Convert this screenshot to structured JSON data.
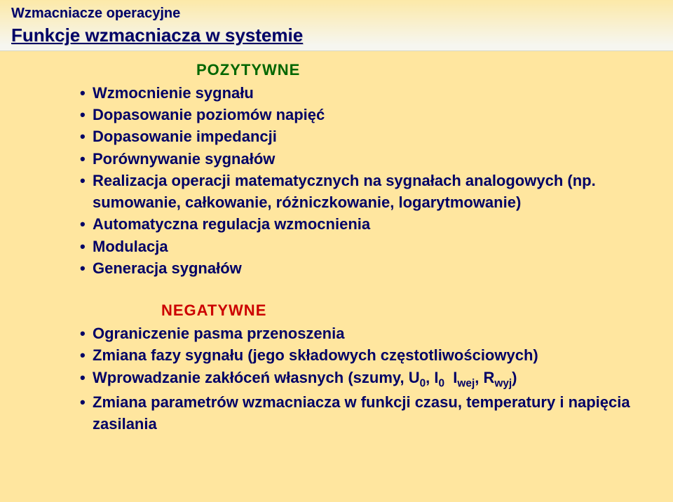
{
  "header": {
    "line1": "Wzmacniacze operacyjne",
    "line2": "Funkcje wzmacniacza w systemie"
  },
  "positive": {
    "title": "POZYTYWNE",
    "items": [
      "Wzmocnienie sygnału",
      "Dopasowanie poziomów napięć",
      "Dopasowanie impedancji",
      "Porównywanie sygnałów",
      "Realizacja operacji matematycznych na sygnałach analogowych (np. sumowanie, całkowanie, różniczkowanie, logarytmowanie)",
      "Automatyczna regulacja wzmocnienia",
      "Modulacja",
      "Generacja sygnałów"
    ]
  },
  "negative": {
    "title": "NEGATYWNE",
    "items": [
      "Ograniczenie pasma przenoszenia",
      "Zmiana fazy sygnału (jego składowych częstotliwościowych)",
      "Wprowadzanie zakłóceń własnych (szumy, U₀, I₀  Iwej, Rwyj)",
      "Zmiana parametrów wzmacniacza w funkcji czasu, temperatury i napięcia zasilania"
    ]
  },
  "colors": {
    "background": "#ffe69f",
    "headerGradientTop": "#fce9a8",
    "headerGradientBottom": "#f6f6f0",
    "textMain": "#000066",
    "positive": "#006600",
    "negative": "#cc0000"
  },
  "typography": {
    "headerLine1_pt": 20,
    "headerLine2_pt": 26,
    "sectionTitle_pt": 22,
    "listItem_pt": 22,
    "fontFamily": "Arial"
  }
}
